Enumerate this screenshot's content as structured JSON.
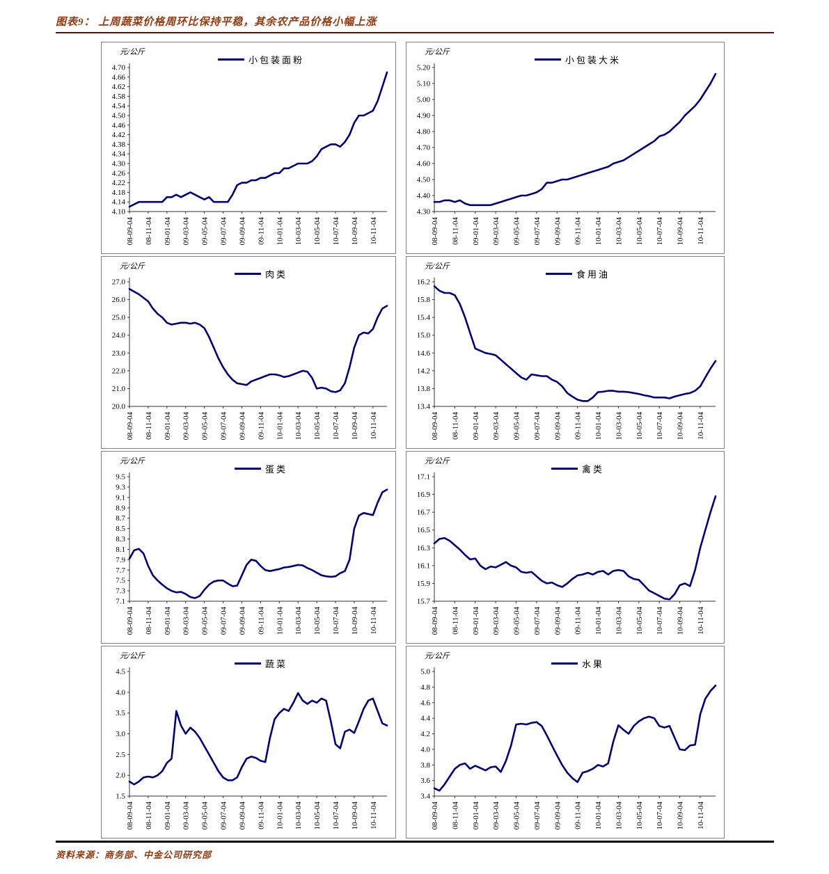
{
  "header": {
    "title": "图表9： 上周蔬菜价格周环比保持平稳，其余农产品价格小幅上涨",
    "accent_color": "#96390d"
  },
  "footer": {
    "source": "资料来源：商务部、中金公司研究部"
  },
  "shared": {
    "x_tick_labels": [
      "08-09-04",
      "08-11-04",
      "09-01-04",
      "09-03-04",
      "09-05-04",
      "09-07-04",
      "09-09-04",
      "09-11-04",
      "10-01-04",
      "10-03-04",
      "10-05-04",
      "10-07-04",
      "10-09-04",
      "10-11-04"
    ],
    "line_color": "#00007d",
    "grid": "off",
    "legend_position": "top-center"
  },
  "chart_data": [
    {
      "type": "line",
      "series_name": "小包装面粉",
      "unit_label": "元/公斤",
      "line_color": "#00007d",
      "ylim": [
        4.1,
        4.7
      ],
      "ytick_step": 0.04,
      "ytick_decimals": 2,
      "x_tick_labels": [
        "08-09-04",
        "08-11-04",
        "09-01-04",
        "09-03-04",
        "09-05-04",
        "09-07-04",
        "09-09-04",
        "09-11-04",
        "10-01-04",
        "10-03-04",
        "10-05-04",
        "10-07-04",
        "10-09-04",
        "10-11-04"
      ],
      "values": [
        4.12,
        4.13,
        4.14,
        4.14,
        4.14,
        4.14,
        4.14,
        4.14,
        4.16,
        4.16,
        4.17,
        4.16,
        4.17,
        4.18,
        4.17,
        4.16,
        4.15,
        4.16,
        4.14,
        4.14,
        4.14,
        4.14,
        4.17,
        4.21,
        4.22,
        4.22,
        4.23,
        4.23,
        4.24,
        4.24,
        4.25,
        4.26,
        4.26,
        4.28,
        4.28,
        4.29,
        4.3,
        4.3,
        4.3,
        4.31,
        4.33,
        4.36,
        4.37,
        4.38,
        4.38,
        4.37,
        4.39,
        4.42,
        4.47,
        4.5,
        4.5,
        4.51,
        4.52,
        4.56,
        4.62,
        4.68
      ]
    },
    {
      "type": "line",
      "series_name": "小包装大米",
      "unit_label": "元/公斤",
      "line_color": "#00007d",
      "ylim": [
        4.3,
        5.2
      ],
      "ytick_step": 0.1,
      "ytick_decimals": 2,
      "x_tick_labels": [
        "08-09-04",
        "08-11-04",
        "09-01-04",
        "09-03-04",
        "09-05-04",
        "09-07-04",
        "09-09-04",
        "09-11-04",
        "10-01-04",
        "10-03-04",
        "10-05-04",
        "10-07-04",
        "10-09-04",
        "10-11-04"
      ],
      "values": [
        4.36,
        4.36,
        4.37,
        4.37,
        4.36,
        4.37,
        4.35,
        4.34,
        4.34,
        4.34,
        4.34,
        4.34,
        4.35,
        4.36,
        4.37,
        4.38,
        4.39,
        4.4,
        4.4,
        4.41,
        4.42,
        4.44,
        4.48,
        4.48,
        4.49,
        4.5,
        4.5,
        4.51,
        4.52,
        4.53,
        4.54,
        4.55,
        4.56,
        4.57,
        4.58,
        4.6,
        4.61,
        4.62,
        4.64,
        4.66,
        4.68,
        4.7,
        4.72,
        4.74,
        4.77,
        4.78,
        4.8,
        4.83,
        4.86,
        4.9,
        4.93,
        4.96,
        5.0,
        5.05,
        5.1,
        5.16
      ]
    },
    {
      "type": "line",
      "series_name": "肉类",
      "unit_label": "元/公斤",
      "line_color": "#00007d",
      "ylim": [
        20.0,
        27.0
      ],
      "ytick_step": 1.0,
      "ytick_decimals": 1,
      "x_tick_labels": [
        "08-09-04",
        "08-11-04",
        "09-01-04",
        "09-03-04",
        "09-05-04",
        "09-07-04",
        "09-09-04",
        "09-11-04",
        "10-01-04",
        "10-03-04",
        "10-05-04",
        "10-07-04",
        "10-09-04",
        "10-11-04"
      ],
      "values": [
        26.6,
        26.45,
        26.3,
        26.1,
        25.9,
        25.5,
        25.2,
        25.0,
        24.7,
        24.6,
        24.65,
        24.7,
        24.7,
        24.65,
        24.7,
        24.6,
        24.4,
        23.9,
        23.3,
        22.7,
        22.2,
        21.8,
        21.5,
        21.3,
        21.25,
        21.2,
        21.4,
        21.5,
        21.6,
        21.7,
        21.8,
        21.8,
        21.75,
        21.65,
        21.7,
        21.8,
        21.9,
        22.0,
        21.95,
        21.6,
        21.0,
        21.05,
        21.0,
        20.85,
        20.8,
        20.9,
        21.3,
        22.2,
        23.3,
        24.0,
        24.15,
        24.1,
        24.35,
        25.0,
        25.5,
        25.65
      ]
    },
    {
      "type": "line",
      "series_name": "食用油",
      "unit_label": "元/公斤",
      "line_color": "#00007d",
      "ylim": [
        13.4,
        16.2
      ],
      "ytick_step": 0.4,
      "ytick_decimals": 1,
      "x_tick_labels": [
        "08-09-04",
        "08-11-04",
        "09-01-04",
        "09-03-04",
        "09-05-04",
        "09-07-04",
        "09-09-04",
        "09-11-04",
        "10-01-04",
        "10-03-04",
        "10-05-04",
        "10-07-04",
        "10-09-04",
        "10-11-04"
      ],
      "values": [
        16.1,
        16.0,
        15.95,
        15.95,
        15.9,
        15.7,
        15.4,
        15.05,
        14.7,
        14.65,
        14.6,
        14.58,
        14.55,
        14.45,
        14.35,
        14.25,
        14.15,
        14.05,
        14.0,
        14.12,
        14.1,
        14.08,
        14.08,
        14.0,
        13.95,
        13.85,
        13.7,
        13.62,
        13.55,
        13.52,
        13.52,
        13.6,
        13.72,
        13.73,
        13.75,
        13.75,
        13.73,
        13.73,
        13.72,
        13.7,
        13.68,
        13.65,
        13.63,
        13.6,
        13.6,
        13.6,
        13.58,
        13.62,
        13.65,
        13.68,
        13.7,
        13.75,
        13.85,
        14.05,
        14.25,
        14.42
      ]
    },
    {
      "type": "line",
      "series_name": "蛋类",
      "unit_label": "元/公斤",
      "line_color": "#00007d",
      "ylim": [
        7.1,
        9.5
      ],
      "ytick_step": 0.2,
      "ytick_decimals": 1,
      "x_tick_labels": [
        "08-09-04",
        "08-11-04",
        "09-01-04",
        "09-03-04",
        "09-05-04",
        "09-07-04",
        "09-09-04",
        "09-11-04",
        "10-01-04",
        "10-03-04",
        "10-05-04",
        "10-07-04",
        "10-09-04",
        "10-11-04"
      ],
      "values": [
        7.92,
        8.08,
        8.11,
        8.02,
        7.78,
        7.6,
        7.5,
        7.42,
        7.35,
        7.3,
        7.27,
        7.28,
        7.24,
        7.18,
        7.16,
        7.2,
        7.32,
        7.42,
        7.48,
        7.5,
        7.5,
        7.44,
        7.39,
        7.4,
        7.6,
        7.8,
        7.9,
        7.88,
        7.78,
        7.7,
        7.68,
        7.7,
        7.72,
        7.75,
        7.76,
        7.78,
        7.8,
        7.79,
        7.74,
        7.7,
        7.65,
        7.6,
        7.58,
        7.57,
        7.58,
        7.64,
        7.68,
        7.9,
        8.5,
        8.75,
        8.8,
        8.78,
        8.76,
        9.0,
        9.2,
        9.25
      ]
    },
    {
      "type": "line",
      "series_name": "禽类",
      "unit_label": "元/公斤",
      "line_color": "#00007d",
      "ylim": [
        15.7,
        17.1
      ],
      "ytick_step": 0.2,
      "ytick_decimals": 1,
      "x_tick_labels": [
        "08-09-04",
        "08-11-04",
        "09-01-04",
        "09-03-04",
        "09-05-04",
        "09-07-04",
        "09-09-04",
        "09-11-04",
        "10-01-04",
        "10-03-04",
        "10-05-04",
        "10-07-04",
        "10-09-04",
        "10-11-04"
      ],
      "values": [
        16.35,
        16.4,
        16.41,
        16.38,
        16.33,
        16.28,
        16.22,
        16.17,
        16.18,
        16.1,
        16.06,
        16.09,
        16.08,
        16.11,
        16.14,
        16.1,
        16.08,
        16.03,
        16.02,
        16.03,
        15.98,
        15.93,
        15.9,
        15.91,
        15.88,
        15.86,
        15.9,
        15.95,
        15.99,
        16.0,
        16.02,
        16.0,
        16.03,
        16.04,
        16.0,
        16.04,
        16.05,
        16.04,
        15.98,
        15.95,
        15.94,
        15.88,
        15.82,
        15.79,
        15.76,
        15.73,
        15.72,
        15.78,
        15.88,
        15.9,
        15.87,
        16.05,
        16.3,
        16.5,
        16.7,
        16.88
      ]
    },
    {
      "type": "line",
      "series_name": "蔬菜",
      "unit_label": "元/公斤",
      "line_color": "#00007d",
      "ylim": [
        1.5,
        4.5
      ],
      "ytick_step": 0.5,
      "ytick_decimals": 1,
      "x_tick_labels": [
        "08-09-04",
        "08-11-04",
        "09-01-04",
        "09-03-04",
        "09-05-04",
        "09-07-04",
        "09-09-04",
        "09-11-04",
        "10-01-04",
        "10-03-04",
        "10-05-04",
        "10-07-04",
        "10-09-04",
        "10-11-04"
      ],
      "values": [
        1.85,
        1.78,
        1.85,
        1.95,
        1.97,
        1.95,
        2.0,
        2.1,
        2.3,
        2.4,
        3.55,
        3.2,
        3.0,
        3.15,
        3.05,
        2.9,
        2.7,
        2.5,
        2.3,
        2.1,
        1.95,
        1.88,
        1.88,
        1.95,
        2.2,
        2.4,
        2.45,
        2.42,
        2.35,
        2.32,
        2.9,
        3.35,
        3.5,
        3.6,
        3.55,
        3.75,
        3.98,
        3.8,
        3.72,
        3.8,
        3.75,
        3.85,
        3.8,
        3.3,
        2.75,
        2.65,
        3.05,
        3.1,
        3.02,
        3.3,
        3.6,
        3.8,
        3.85,
        3.55,
        3.25,
        3.2
      ]
    },
    {
      "type": "line",
      "series_name": "水果",
      "unit_label": "元/公斤",
      "line_color": "#00007d",
      "ylim": [
        3.4,
        5.0
      ],
      "ytick_step": 0.2,
      "ytick_decimals": 1,
      "x_tick_labels": [
        "08-09-04",
        "08-11-04",
        "09-01-04",
        "09-03-04",
        "09-05-04",
        "09-07-04",
        "09-09-04",
        "09-11-04",
        "10-01-04",
        "10-03-04",
        "10-05-04",
        "10-07-04",
        "10-09-04",
        "10-11-04"
      ],
      "values": [
        3.5,
        3.47,
        3.55,
        3.65,
        3.75,
        3.8,
        3.82,
        3.75,
        3.79,
        3.76,
        3.73,
        3.77,
        3.78,
        3.71,
        3.85,
        4.05,
        4.32,
        4.33,
        4.32,
        4.34,
        4.35,
        4.3,
        4.18,
        4.05,
        3.92,
        3.8,
        3.7,
        3.63,
        3.58,
        3.7,
        3.72,
        3.75,
        3.8,
        3.78,
        3.82,
        4.1,
        4.31,
        4.25,
        4.2,
        4.3,
        4.36,
        4.4,
        4.42,
        4.4,
        4.3,
        4.28,
        4.3,
        4.15,
        4.0,
        3.99,
        4.05,
        4.06,
        4.45,
        4.65,
        4.75,
        4.82
      ]
    }
  ]
}
